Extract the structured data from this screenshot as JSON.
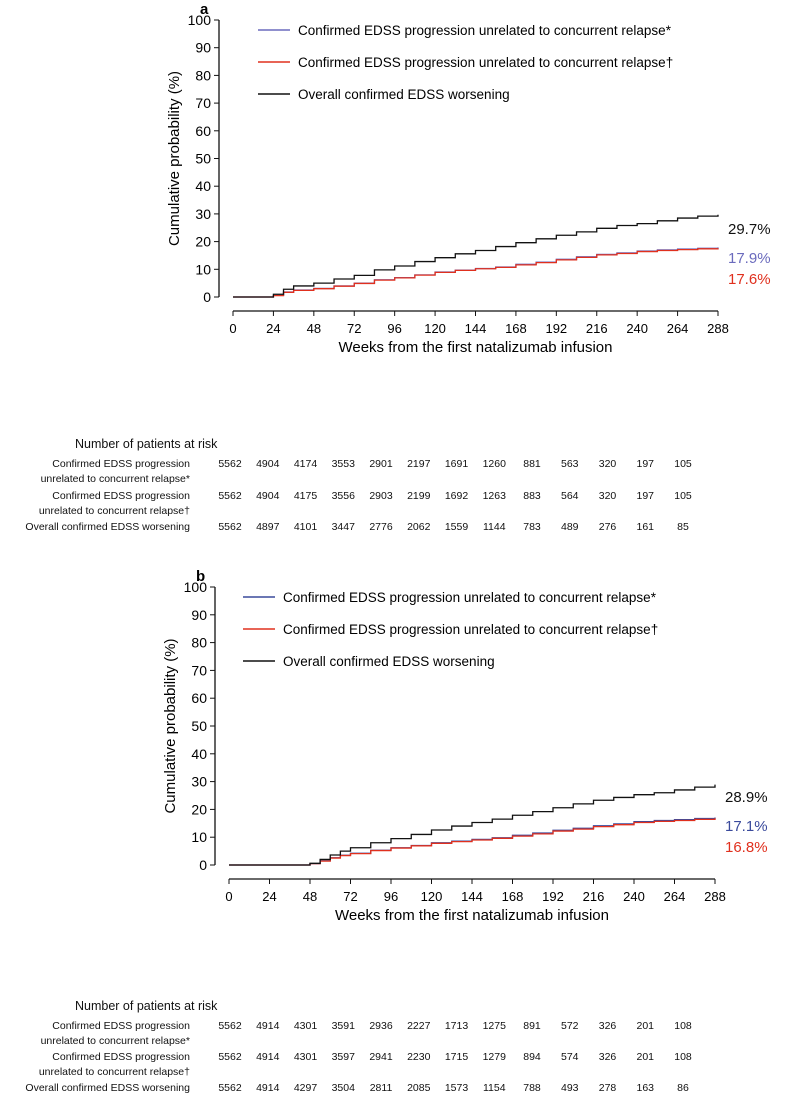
{
  "chart_data": [
    {
      "type": "line",
      "panel_label": "a",
      "xlabel": "Weeks from the first natalizumab infusion",
      "ylabel": "Cumulative probability (%)",
      "xlim": [
        0,
        288
      ],
      "ylim": [
        0,
        100
      ],
      "xticks": [
        0,
        24,
        48,
        72,
        96,
        120,
        144,
        168,
        192,
        216,
        240,
        264,
        288
      ],
      "yticks": [
        0,
        10,
        20,
        30,
        40,
        50,
        60,
        70,
        80,
        90,
        100
      ],
      "legend_position": "top-right",
      "series": [
        {
          "name": "Confirmed EDSS progression unrelated to concurrent relapse*",
          "color": "#6b6bbd",
          "end_label": "17.9%",
          "x": [
            0,
            20,
            24,
            30,
            36,
            48,
            60,
            72,
            84,
            96,
            108,
            120,
            132,
            144,
            156,
            168,
            180,
            192,
            204,
            216,
            228,
            240,
            252,
            264,
            276,
            288
          ],
          "y": [
            0,
            0,
            0.6,
            1.8,
            2.5,
            3.1,
            4.0,
            5.0,
            6.2,
            7.0,
            8.0,
            9.0,
            9.7,
            10.3,
            10.8,
            11.8,
            12.6,
            13.6,
            14.5,
            15.4,
            15.9,
            16.6,
            17.0,
            17.3,
            17.6,
            17.9
          ]
        },
        {
          "name": "Confirmed EDSS progression unrelated to concurrent relapse†",
          "color": "#e0301e",
          "end_label": "17.6%",
          "x": [
            0,
            20,
            24,
            30,
            36,
            48,
            60,
            72,
            84,
            96,
            108,
            120,
            132,
            144,
            156,
            168,
            180,
            192,
            204,
            216,
            228,
            240,
            252,
            264,
            276,
            288
          ],
          "y": [
            0,
            0,
            0.5,
            1.7,
            2.4,
            3.0,
            3.9,
            4.9,
            6.1,
            6.9,
            7.9,
            8.9,
            9.6,
            10.2,
            10.7,
            11.6,
            12.4,
            13.4,
            14.3,
            15.2,
            15.7,
            16.4,
            16.8,
            17.1,
            17.4,
            17.6
          ]
        },
        {
          "name": "Overall confirmed EDSS worsening",
          "color": "#111111",
          "end_label": "29.7%",
          "x": [
            0,
            20,
            24,
            30,
            36,
            48,
            60,
            72,
            84,
            96,
            108,
            120,
            132,
            144,
            156,
            168,
            180,
            192,
            204,
            216,
            228,
            240,
            252,
            264,
            276,
            288
          ],
          "y": [
            0,
            0,
            1.0,
            2.8,
            4.0,
            5.0,
            6.5,
            7.8,
            9.8,
            11.2,
            12.8,
            14.2,
            15.6,
            16.8,
            18.2,
            19.6,
            21.0,
            22.3,
            23.5,
            24.8,
            25.8,
            26.5,
            27.5,
            28.5,
            29.2,
            29.7
          ]
        }
      ],
      "at_risk": {
        "title": "Number of patients at risk",
        "rows": [
          {
            "label1": "Confirmed EDSS progression",
            "label2": "unrelated to concurrent relapse*",
            "values": [
              5562,
              4904,
              4174,
              3553,
              2901,
              2197,
              1691,
              1260,
              881,
              563,
              320,
              197,
              105
            ]
          },
          {
            "label1": "Confirmed EDSS progression",
            "label2": "unrelated to concurrent relapse†",
            "values": [
              5562,
              4904,
              4175,
              3556,
              2903,
              2199,
              1692,
              1263,
              883,
              564,
              320,
              197,
              105
            ]
          },
          {
            "label1": "Overall confirmed EDSS worsening",
            "label2": "",
            "values": [
              5562,
              4897,
              4101,
              3447,
              2776,
              2062,
              1559,
              1144,
              783,
              489,
              276,
              161,
              85
            ]
          }
        ]
      }
    },
    {
      "type": "line",
      "panel_label": "b",
      "xlabel": "Weeks from the first natalizumab infusion",
      "ylabel": "Cumulative probability (%)",
      "xlim": [
        0,
        288
      ],
      "ylim": [
        0,
        100
      ],
      "xticks": [
        0,
        24,
        48,
        72,
        96,
        120,
        144,
        168,
        192,
        216,
        240,
        264,
        288
      ],
      "yticks": [
        0,
        10,
        20,
        30,
        40,
        50,
        60,
        70,
        80,
        90,
        100
      ],
      "legend_position": "top-right",
      "series": [
        {
          "name": "Confirmed EDSS progression unrelated to concurrent relapse*",
          "color": "#3a4a9c",
          "end_label": "17.1%",
          "x": [
            0,
            46,
            48,
            54,
            60,
            66,
            72,
            84,
            96,
            108,
            120,
            132,
            144,
            156,
            168,
            180,
            192,
            204,
            216,
            228,
            240,
            252,
            264,
            276,
            288
          ],
          "y": [
            0,
            0,
            0.5,
            1.5,
            2.6,
            3.5,
            4.2,
            5.3,
            6.2,
            7.0,
            8.0,
            8.6,
            9.2,
            9.8,
            10.7,
            11.5,
            12.5,
            13.2,
            14.1,
            14.8,
            15.6,
            16.0,
            16.3,
            16.7,
            17.1
          ]
        },
        {
          "name": "Confirmed EDSS progression unrelated to concurrent relapse†",
          "color": "#e0301e",
          "end_label": "16.8%",
          "x": [
            0,
            46,
            48,
            54,
            60,
            66,
            72,
            84,
            96,
            108,
            120,
            132,
            144,
            156,
            168,
            180,
            192,
            204,
            216,
            228,
            240,
            252,
            264,
            276,
            288
          ],
          "y": [
            0,
            0,
            0.5,
            1.4,
            2.5,
            3.4,
            4.1,
            5.2,
            6.1,
            6.9,
            7.8,
            8.4,
            9.0,
            9.6,
            10.4,
            11.2,
            12.2,
            12.9,
            13.8,
            14.5,
            15.3,
            15.7,
            16.0,
            16.4,
            16.8
          ]
        },
        {
          "name": "Overall confirmed EDSS worsening",
          "color": "#111111",
          "end_label": "28.9%",
          "x": [
            0,
            46,
            48,
            54,
            60,
            66,
            72,
            84,
            96,
            108,
            120,
            132,
            144,
            156,
            168,
            180,
            192,
            204,
            216,
            228,
            240,
            252,
            264,
            276,
            288
          ],
          "y": [
            0,
            0,
            0.6,
            2.0,
            3.6,
            5.0,
            6.2,
            8.0,
            9.5,
            11.0,
            12.6,
            14.0,
            15.3,
            16.5,
            17.9,
            19.2,
            20.6,
            22.0,
            23.3,
            24.3,
            25.3,
            26.0,
            27.0,
            28.0,
            28.9
          ]
        }
      ],
      "at_risk": {
        "title": "Number of patients at risk",
        "rows": [
          {
            "label1": "Confirmed EDSS progression",
            "label2": "unrelated to concurrent relapse*",
            "values": [
              5562,
              4914,
              4301,
              3591,
              2936,
              2227,
              1713,
              1275,
              891,
              572,
              326,
              201,
              108
            ]
          },
          {
            "label1": "Confirmed EDSS progression",
            "label2": "unrelated to concurrent relapse†",
            "values": [
              5562,
              4914,
              4301,
              3597,
              2941,
              2230,
              1715,
              1279,
              894,
              574,
              326,
              201,
              108
            ]
          },
          {
            "label1": "Overall confirmed EDSS worsening",
            "label2": "",
            "values": [
              5562,
              4914,
              4297,
              3504,
              2811,
              2085,
              1573,
              1154,
              788,
              493,
              278,
              163,
              86
            ]
          }
        ]
      }
    }
  ]
}
